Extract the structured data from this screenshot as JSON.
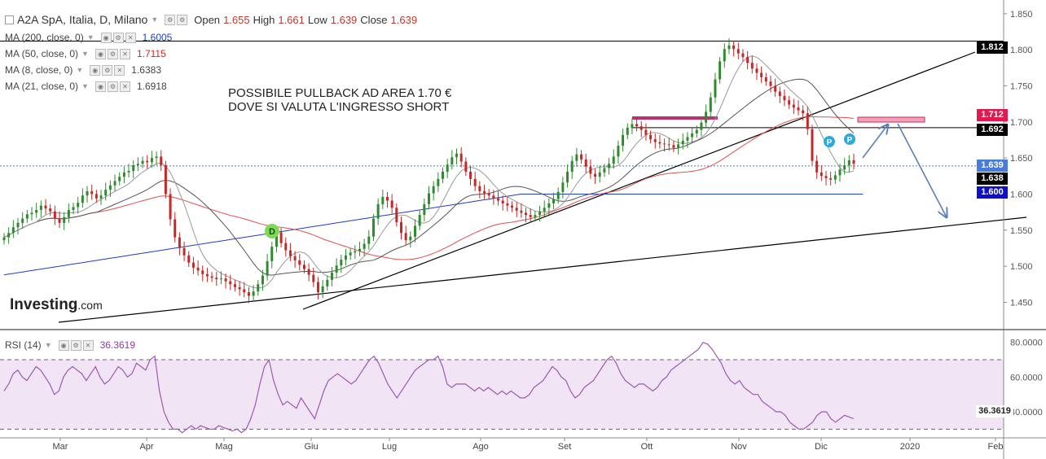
{
  "header": {
    "symbol": "A2A SpA, Italia, D, Milano",
    "open_label": "Open",
    "open": "1.655",
    "high_label": "High",
    "high": "1.661",
    "low_label": "Low",
    "low": "1.639",
    "close_label": "Close",
    "close": "1.639"
  },
  "indicators": [
    {
      "label": "MA (200, close, 0)",
      "value": "1.6005",
      "color": "#1e3fbf"
    },
    {
      "label": "MA (50, close, 0)",
      "value": "1.7115",
      "color": "#e05050"
    },
    {
      "label": "MA (8, close, 0)",
      "value": "1.6383",
      "color": "#333333"
    },
    {
      "label": "MA (21, close, 0)",
      "value": "1.6918",
      "color": "#333333"
    }
  ],
  "annotation": {
    "line1": "POSSIBILE PULLBACK AD AREA 1.70 €",
    "line2": "DOVE SI VALUTA L'INGRESSO SHORT"
  },
  "logo": {
    "main": "Investing",
    "suffix": ".com"
  },
  "price_labels": [
    {
      "value": "1.812",
      "bg": "#000000"
    },
    {
      "value": "1.712",
      "bg": "#e01a4f"
    },
    {
      "value": "1.692",
      "bg": "#000000"
    },
    {
      "value": "1.639",
      "bg": "#4a7bd8"
    },
    {
      "value": "1.638",
      "bg": "#000000"
    },
    {
      "value": "1.600",
      "bg": "#1010c8"
    }
  ],
  "rsi": {
    "label": "RSI (14)",
    "value": "36.3619",
    "axis_label": "36.3619"
  },
  "markers": [
    {
      "letter": "D",
      "color": "#7ed957"
    },
    {
      "letter": "P",
      "color": "#2aa9e0"
    },
    {
      "letter": "P",
      "color": "#2aa9e0"
    }
  ],
  "chart_data": {
    "type": "candlestick",
    "y_ticks": [
      1.45,
      1.5,
      1.55,
      1.6,
      1.65,
      1.7,
      1.75,
      1.8,
      1.85
    ],
    "ylim": [
      1.42,
      1.86
    ],
    "rsi_ticks": [
      "80.0000",
      "60.0000",
      "40.0000"
    ],
    "rsi_ylim": [
      25,
      85
    ],
    "x_ticks": [
      "Mar",
      "Apr",
      "Mag",
      "Giu",
      "Lug",
      "Ago",
      "Set",
      "Ott",
      "Nov",
      "Dic",
      "2020",
      "Feb"
    ],
    "close": [
      1.54,
      1.546,
      1.554,
      1.56,
      1.566,
      1.572,
      1.574,
      1.578,
      1.584,
      1.58,
      1.576,
      1.566,
      1.56,
      1.568,
      1.578,
      1.582,
      1.588,
      1.598,
      1.604,
      1.6,
      1.594,
      1.598,
      1.606,
      1.612,
      1.618,
      1.624,
      1.63,
      1.632,
      1.64,
      1.642,
      1.646,
      1.644,
      1.65,
      1.652,
      1.64,
      1.6,
      1.565,
      1.54,
      1.525,
      1.515,
      1.505,
      1.498,
      1.494,
      1.489,
      1.486,
      1.484,
      1.482,
      1.483,
      1.479,
      1.475,
      1.471,
      1.468,
      1.464,
      1.459,
      1.465,
      1.475,
      1.487,
      1.507,
      1.527,
      1.547,
      1.532,
      1.522,
      1.514,
      1.508,
      1.502,
      1.496,
      1.488,
      1.478,
      1.464,
      1.472,
      1.481,
      1.491,
      1.501,
      1.509,
      1.515,
      1.519,
      1.521,
      1.524,
      1.531,
      1.541,
      1.566,
      1.586,
      1.596,
      1.591,
      1.581,
      1.561,
      1.546,
      1.536,
      1.541,
      1.556,
      1.571,
      1.586,
      1.601,
      1.611,
      1.621,
      1.631,
      1.641,
      1.651,
      1.656,
      1.645,
      1.631,
      1.621,
      1.611,
      1.604,
      1.601,
      1.598,
      1.594,
      1.591,
      1.587,
      1.584,
      1.581,
      1.577,
      1.574,
      1.571,
      1.568,
      1.571,
      1.576,
      1.581,
      1.587,
      1.593,
      1.603,
      1.616,
      1.631,
      1.646,
      1.655,
      1.648,
      1.638,
      1.628,
      1.624,
      1.63,
      1.636,
      1.642,
      1.652,
      1.667,
      1.682,
      1.692,
      1.697,
      1.694,
      1.689,
      1.682,
      1.676,
      1.672,
      1.67,
      1.669,
      1.668,
      1.664,
      1.669,
      1.674,
      1.679,
      1.684,
      1.689,
      1.699,
      1.714,
      1.734,
      1.759,
      1.784,
      1.801,
      1.806,
      1.801,
      1.795,
      1.79,
      1.782,
      1.774,
      1.768,
      1.762,
      1.756,
      1.75,
      1.742,
      1.736,
      1.73,
      1.724,
      1.72,
      1.716,
      1.712,
      1.69,
      1.646,
      1.63,
      1.625,
      1.622,
      1.62,
      1.626,
      1.634,
      1.64,
      1.647,
      1.642
    ],
    "ma200": [
      1.488,
      1.489,
      1.49,
      1.491,
      1.492,
      1.493,
      1.494,
      1.495,
      1.496,
      1.497,
      1.498,
      1.499,
      1.5,
      1.501,
      1.502,
      1.503,
      1.504,
      1.505,
      1.506,
      1.507,
      1.508,
      1.509,
      1.51,
      1.511,
      1.512,
      1.513,
      1.514,
      1.515,
      1.516,
      1.517,
      1.518,
      1.519,
      1.52,
      1.521,
      1.522,
      1.523,
      1.524,
      1.525,
      1.526,
      1.527,
      1.528,
      1.529,
      1.53,
      1.531,
      1.532,
      1.533,
      1.534,
      1.535,
      1.536,
      1.537,
      1.538,
      1.539,
      1.54,
      1.541,
      1.542,
      1.543,
      1.544,
      1.545,
      1.546,
      1.547,
      1.548,
      1.549,
      1.55,
      1.551,
      1.552,
      1.553,
      1.554,
      1.555,
      1.556,
      1.557,
      1.558,
      1.559,
      1.56,
      1.561,
      1.562,
      1.563,
      1.564,
      1.565,
      1.566,
      1.567,
      1.568,
      1.569,
      1.57,
      1.571,
      1.572,
      1.573,
      1.574,
      1.575,
      1.576,
      1.577,
      1.578,
      1.579,
      1.58,
      1.581,
      1.582,
      1.583,
      1.584,
      1.585,
      1.586,
      1.587,
      1.588,
      1.589,
      1.59,
      1.591,
      1.592,
      1.593,
      1.594,
      1.595,
      1.596,
      1.597,
      1.598,
      1.599,
      1.6,
      1.6,
      1.6,
      1.6,
      1.6,
      1.6,
      1.6,
      1.6,
      1.6,
      1.6,
      1.6,
      1.6,
      1.6,
      1.6,
      1.6,
      1.6,
      1.6,
      1.6,
      1.6,
      1.6,
      1.6,
      1.6,
      1.6,
      1.6,
      1.6,
      1.6,
      1.6,
      1.6,
      1.6,
      1.6,
      1.6,
      1.6,
      1.6,
      1.6,
      1.6,
      1.6,
      1.6,
      1.6,
      1.6,
      1.6,
      1.6,
      1.6,
      1.6,
      1.6,
      1.6,
      1.6,
      1.6,
      1.6,
      1.6,
      1.6,
      1.6,
      1.6,
      1.6,
      1.6,
      1.6,
      1.6,
      1.6,
      1.6,
      1.6,
      1.6,
      1.6,
      1.6,
      1.6,
      1.6,
      1.6,
      1.6,
      1.6,
      1.6,
      1.6,
      1.6,
      1.6,
      1.6,
      1.6,
      1.6,
      1.6
    ],
    "rsi_values": [
      52,
      56,
      62,
      64,
      60,
      58,
      62,
      66,
      64,
      60,
      56,
      50,
      52,
      60,
      64,
      66,
      64,
      62,
      58,
      62,
      66,
      60,
      56,
      58,
      62,
      66,
      64,
      60,
      62,
      68,
      66,
      64,
      70,
      72,
      52,
      40,
      34,
      30,
      30,
      28,
      30,
      32,
      30,
      32,
      31,
      30,
      30,
      32,
      31,
      30,
      29,
      30,
      28,
      30,
      36,
      44,
      56,
      66,
      70,
      58,
      50,
      44,
      46,
      44,
      42,
      48,
      44,
      40,
      36,
      44,
      52,
      58,
      60,
      62,
      60,
      58,
      56,
      58,
      62,
      66,
      70,
      72,
      68,
      62,
      56,
      52,
      48,
      52,
      56,
      60,
      64,
      66,
      68,
      70,
      70,
      72,
      66,
      56,
      54,
      56,
      56,
      56,
      54,
      52,
      54,
      52,
      54,
      52,
      50,
      52,
      50,
      52,
      50,
      48,
      48,
      50,
      54,
      56,
      58,
      62,
      66,
      64,
      60,
      58,
      52,
      48,
      50,
      54,
      56,
      58,
      62,
      66,
      70,
      72,
      68,
      62,
      58,
      56,
      54,
      56,
      56,
      54,
      52,
      54,
      58,
      60,
      64,
      66,
      68,
      70,
      72,
      74,
      76,
      80,
      79,
      76,
      72,
      68,
      62,
      58,
      56,
      58,
      54,
      52,
      50,
      50,
      46,
      44,
      42,
      40,
      40,
      38,
      34,
      32,
      30,
      30,
      32,
      34,
      38,
      40,
      40,
      36,
      34,
      36,
      38,
      37,
      36
    ]
  }
}
